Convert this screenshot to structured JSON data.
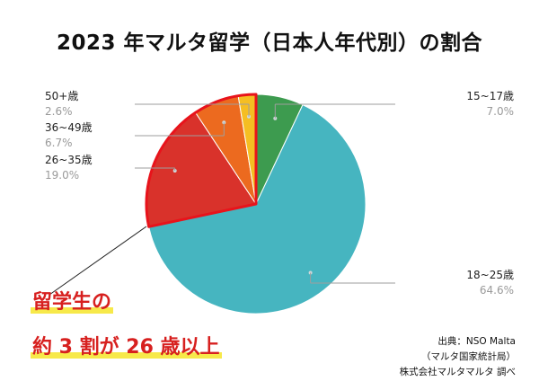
{
  "title": "2023 年マルタ留学（日本人年代別）の割合",
  "chart_data": {
    "type": "pie",
    "title": "2023 年マルタ留学（日本人年代別）の割合",
    "slices": [
      {
        "label": "15~17歳",
        "value": 7.0,
        "pct_label": "7.0%",
        "color": "#3d9b4f"
      },
      {
        "label": "18~25歳",
        "value": 64.6,
        "pct_label": "64.6%",
        "color": "#46b5c0"
      },
      {
        "label": "26~35歳",
        "value": 19.0,
        "pct_label": "19.0%",
        "color": "#d9322b"
      },
      {
        "label": "36~49歳",
        "value": 6.7,
        "pct_label": "6.7%",
        "color": "#ec6a1f"
      },
      {
        "label": "50+歳",
        "value": 2.6,
        "pct_label": "2.6%",
        "color": "#f5be22"
      }
    ],
    "highlight_color": "#e8131b",
    "legend": "none"
  },
  "callout": {
    "line1": "留学生の",
    "line2": "約 3 割が 26 歳以上"
  },
  "source": {
    "line1": "出典：NSO Malta",
    "line2": "（マルタ国家統計局）",
    "line3": "株式会社マルタマルタ 調べ"
  }
}
